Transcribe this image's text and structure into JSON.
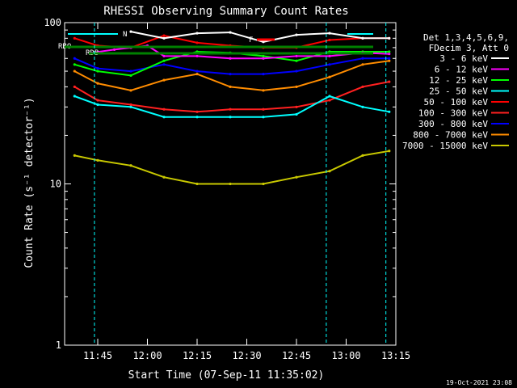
{
  "chart_data": {
    "type": "line",
    "title": "RHESSI Observing Summary Count Rates",
    "xlabel": "Start Time (07-Sep-11 11:35:02)",
    "ylabel": "Count Rate (s⁻¹ detector⁻¹)",
    "yscale": "log",
    "ylim": [
      1,
      100
    ],
    "xlim": [
      "11:35",
      "13:15"
    ],
    "x_ticks": [
      "11:45",
      "12:00",
      "12:15",
      "12:30",
      "12:45",
      "13:00",
      "13:15"
    ],
    "y_ticks": [
      "1",
      "10",
      "100"
    ],
    "legend_header": [
      "Det 1,3,4,5,6,9,",
      "FDecim 3, Att 0"
    ],
    "legend_position": "right",
    "series": [
      {
        "name": "3 - 6 keV",
        "color": "#ffffff",
        "x": [
          "11:55",
          "12:05",
          "12:15",
          "12:25",
          "12:35",
          "12:45",
          "12:55",
          "13:05",
          "13:13"
        ],
        "values": [
          88,
          80,
          86,
          87,
          76,
          84,
          86,
          80,
          80
        ]
      },
      {
        "name": "6 - 12 keV",
        "color": "#ff00ff",
        "x": [
          "11:43",
          "11:50",
          "11:55",
          "12:00",
          "12:05",
          "12:15",
          "12:25",
          "12:35",
          "12:45",
          "12:55",
          "13:05",
          "13:13"
        ],
        "values": [
          65,
          68,
          70,
          72,
          62,
          62,
          60,
          60,
          62,
          62,
          65,
          64
        ]
      },
      {
        "name": "12 - 25 keV",
        "color": "#00ff00",
        "x": [
          "11:38",
          "11:45",
          "11:55",
          "12:05",
          "12:15",
          "12:25",
          "12:35",
          "12:45",
          "12:55",
          "13:05",
          "13:13"
        ],
        "values": [
          55,
          50,
          47,
          58,
          66,
          65,
          62,
          58,
          66,
          66,
          66
        ]
      },
      {
        "name": "25 - 50 keV",
        "color": "#00ffff",
        "x": [
          "11:38",
          "11:45",
          "11:55",
          "12:05",
          "12:15",
          "12:25",
          "12:35",
          "12:45",
          "12:55",
          "13:05",
          "13:13"
        ],
        "values": [
          35,
          31,
          30,
          26,
          26,
          26,
          26,
          27,
          35,
          30,
          28
        ]
      },
      {
        "name": "50 - 100 keV",
        "color": "#ff0000",
        "x": [
          "11:38",
          "11:45",
          "11:55",
          "12:05",
          "12:15",
          "12:25",
          "12:35",
          "12:45",
          "12:55",
          "13:05",
          "13:13"
        ],
        "values": [
          80,
          72,
          70,
          83,
          75,
          72,
          70,
          70,
          78,
          80,
          80
        ]
      },
      {
        "name": "100 - 300 keV",
        "color": "#ff2020",
        "x": [
          "11:38",
          "11:45",
          "11:55",
          "12:05",
          "12:15",
          "12:25",
          "12:35",
          "12:45",
          "12:55",
          "13:05",
          "13:13"
        ],
        "values": [
          40,
          33,
          31,
          29,
          28,
          29,
          29,
          30,
          33,
          40,
          43
        ]
      },
      {
        "name": "300 - 800 keV",
        "color": "#0000ff",
        "x": [
          "11:38",
          "11:45",
          "11:55",
          "12:05",
          "12:15",
          "12:25",
          "12:35",
          "12:45",
          "12:55",
          "13:05",
          "13:13"
        ],
        "values": [
          60,
          52,
          50,
          55,
          50,
          48,
          48,
          50,
          55,
          60,
          60
        ]
      },
      {
        "name": "800 - 7000 keV",
        "color": "#ff8c00",
        "x": [
          "11:38",
          "11:45",
          "11:55",
          "12:05",
          "12:15",
          "12:25",
          "12:35",
          "12:45",
          "12:55",
          "13:05",
          "13:13"
        ],
        "values": [
          50,
          42,
          38,
          44,
          48,
          40,
          38,
          40,
          46,
          55,
          58
        ]
      },
      {
        "name": "7000 - 15000 keV",
        "color": "#c8c800",
        "x": [
          "11:38",
          "11:45",
          "11:55",
          "12:05",
          "12:15",
          "12:25",
          "12:35",
          "12:45",
          "12:55",
          "13:05",
          "13:13"
        ],
        "values": [
          15,
          14,
          13,
          11,
          10,
          10,
          10,
          11,
          12,
          15,
          16
        ]
      }
    ],
    "annotations": [
      {
        "text": "N",
        "color": "#00ffff"
      },
      {
        "text": "F",
        "color": "#ff0000"
      },
      {
        "text": "RBO",
        "color": "#008000"
      },
      {
        "text": "RDB",
        "color": "#008000"
      }
    ],
    "footer_date": "19-Oct-2021 23:08"
  }
}
